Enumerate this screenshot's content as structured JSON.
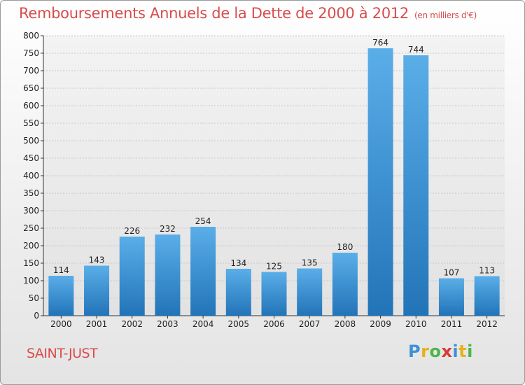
{
  "title": "Remboursements Annuels de la Dette de 2000 à 2012",
  "subtitle": "(en milliers d'€)",
  "commune": "SAINT-JUST",
  "logo": {
    "p": "P",
    "r": "r",
    "o": "o",
    "x": "x",
    "i": "i",
    "t": "t",
    "i2": "i"
  },
  "colors": {
    "title": "#d84c4c",
    "bar_top": "#5aaee8",
    "bar_bottom": "#2274b8"
  },
  "chart_data": {
    "type": "bar",
    "title": "Remboursements Annuels de la Dette de 2000 à 2012",
    "subtitle": "(en milliers d'€)",
    "categories": [
      "2000",
      "2001",
      "2002",
      "2003",
      "2004",
      "2005",
      "2006",
      "2007",
      "2008",
      "2009",
      "2010",
      "2011",
      "2012"
    ],
    "values": [
      114,
      143,
      226,
      232,
      254,
      134,
      125,
      135,
      180,
      764,
      744,
      107,
      113
    ],
    "ylim": [
      0,
      800
    ],
    "yticks": [
      0,
      50,
      100,
      150,
      200,
      250,
      300,
      350,
      400,
      450,
      500,
      550,
      600,
      650,
      700,
      750,
      800
    ],
    "grid": true,
    "legend": "none"
  }
}
